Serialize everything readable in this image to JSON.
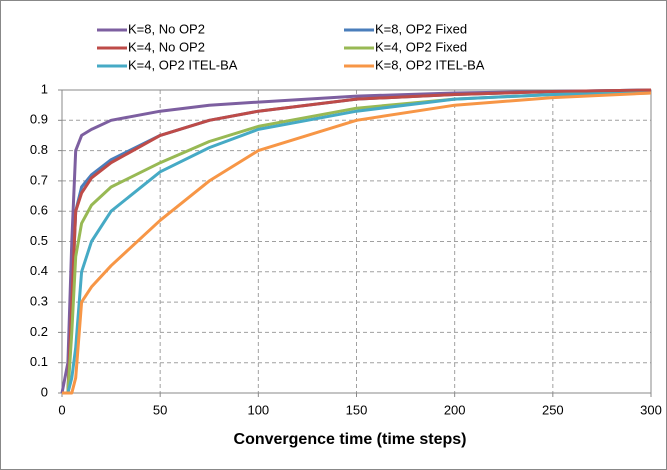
{
  "chart_data": {
    "type": "line",
    "x_label": "Convergence time (time steps)",
    "x": [
      0,
      3,
      5,
      7,
      10,
      15,
      25,
      50,
      75,
      100,
      150,
      200,
      250,
      300
    ],
    "series": [
      {
        "name": "K=8, No OP2",
        "color": "#7d5fa0",
        "values": [
          0,
          0.1,
          0.5,
          0.8,
          0.85,
          0.87,
          0.9,
          0.93,
          0.95,
          0.96,
          0.98,
          0.99,
          0.995,
          1
        ]
      },
      {
        "name": "K=8, OP2 Fixed",
        "color": "#4a7ebb",
        "values": [
          0,
          0,
          0.3,
          0.6,
          0.68,
          0.72,
          0.77,
          0.85,
          0.9,
          0.93,
          0.97,
          0.985,
          0.995,
          1
        ]
      },
      {
        "name": "K=4, No OP2",
        "color": "#be4b48",
        "values": [
          0,
          0,
          0.3,
          0.6,
          0.66,
          0.71,
          0.76,
          0.85,
          0.9,
          0.93,
          0.97,
          0.985,
          0.995,
          1
        ]
      },
      {
        "name": "K=4, OP2 Fixed",
        "color": "#98b954",
        "values": [
          0,
          0,
          0.2,
          0.45,
          0.56,
          0.62,
          0.68,
          0.76,
          0.83,
          0.88,
          0.94,
          0.97,
          0.985,
          0.99
        ]
      },
      {
        "name": "K=4, OP2 ITEL-BA",
        "color": "#46aac5",
        "values": [
          0,
          0,
          0.05,
          0.15,
          0.4,
          0.5,
          0.6,
          0.73,
          0.81,
          0.87,
          0.93,
          0.97,
          0.985,
          0.99
        ]
      },
      {
        "name": "K=8, OP2 ITEL-BA",
        "color": "#f79646",
        "values": [
          0,
          0,
          0,
          0.05,
          0.3,
          0.35,
          0.42,
          0.57,
          0.7,
          0.8,
          0.9,
          0.95,
          0.975,
          0.99
        ]
      }
    ],
    "xlim": [
      0,
      300
    ],
    "xticks": [
      0,
      50,
      100,
      150,
      200,
      250,
      300
    ],
    "ylim": [
      0,
      1
    ],
    "yticks": [
      0,
      0.1,
      0.2,
      0.3,
      0.4,
      0.5,
      0.6,
      0.7,
      0.8,
      0.9,
      1
    ],
    "grid": true,
    "legend": "top"
  }
}
